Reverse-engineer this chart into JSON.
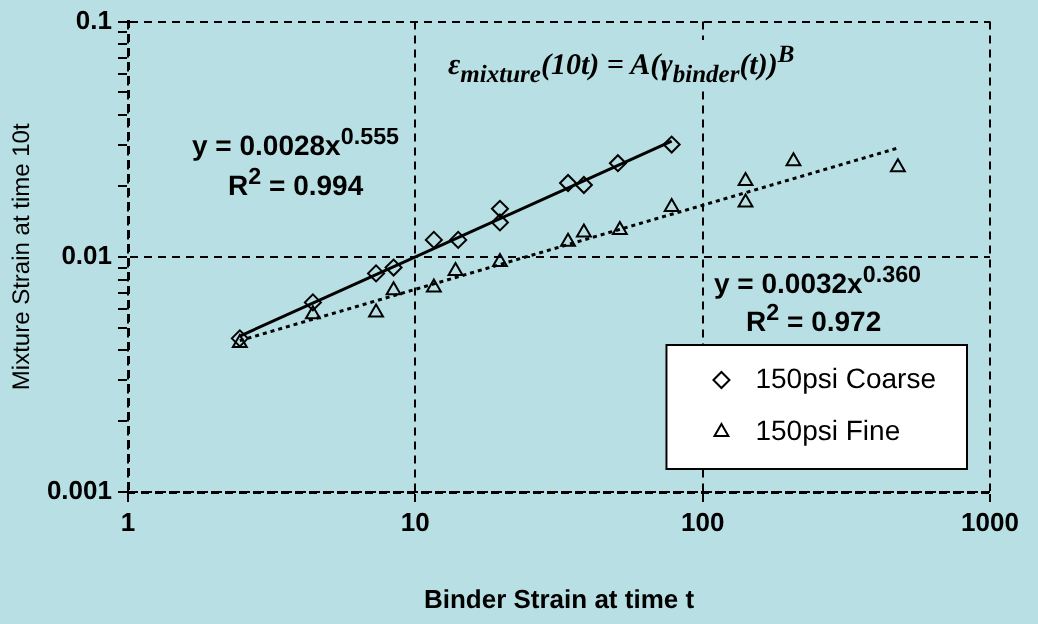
{
  "chart_data": {
    "type": "scatter",
    "xlabel": "Binder Strain at time t",
    "ylabel": "Mixture Strain at time 10t",
    "log": "xy",
    "xlim": [
      1,
      1000
    ],
    "ylim": [
      0.001,
      0.1
    ],
    "xticks": [
      1,
      10,
      100,
      1000
    ],
    "yticks": [
      0.001,
      {
        "value": 0.002,
        "label": null
      },
      {
        "value": 0.003,
        "label": null
      },
      {
        "value": 0.004,
        "label": null
      },
      {
        "value": 0.005,
        "label": null
      },
      {
        "value": 0.006,
        "label": null
      },
      {
        "value": 0.007,
        "label": null
      },
      {
        "value": 0.008,
        "label": null
      },
      {
        "value": 0.009,
        "label": null
      },
      0.01,
      {
        "value": 0.02,
        "label": null
      },
      {
        "value": 0.03,
        "label": null
      },
      {
        "value": 0.04,
        "label": null
      },
      {
        "value": 0.05,
        "label": null
      },
      {
        "value": 0.06,
        "label": null
      },
      {
        "value": 0.07,
        "label": null
      },
      {
        "value": 0.08,
        "label": null
      },
      {
        "value": 0.09,
        "label": null
      },
      0.1
    ],
    "grid": true,
    "legend": "bottom right",
    "series": [
      {
        "name": "150psi Coarse",
        "marker": "diamond",
        "color": "#000000",
        "x": [
          2.45,
          4.4,
          7.3,
          8.4,
          11.6,
          14.1,
          19.7,
          19.7,
          34,
          38.6,
          50.7,
          78
        ],
        "values": [
          0.0045,
          0.0064,
          0.0085,
          0.009,
          0.0118,
          0.0118,
          0.016,
          0.014,
          0.0206,
          0.0202,
          0.025,
          0.03
        ]
      },
      {
        "name": "150psi Fine",
        "marker": "triangle",
        "color": "#000000",
        "x": [
          2.45,
          4.4,
          7.3,
          8.4,
          11.6,
          13.8,
          19.7,
          34,
          38.6,
          51.5,
          78,
          141,
          141,
          207,
          478
        ],
        "values": [
          0.0043,
          0.0057,
          0.0058,
          0.0072,
          0.0074,
          0.0087,
          0.0095,
          0.0116,
          0.0127,
          0.013,
          0.0163,
          0.021,
          0.017,
          0.0255,
          0.024
        ]
      },
      {
        "type": "line",
        "marker": "none",
        "line_style": "solid",
        "color": "#000000",
        "x": [
          2.45,
          78
        ],
        "values": [
          0.0046,
          0.031
        ]
      },
      {
        "type": "line",
        "marker": "none",
        "line_style": "dashed",
        "color": "#000000",
        "x": [
          2.45,
          478
        ],
        "values": [
          0.0044,
          0.029
        ]
      }
    ],
    "annotations": [
      "ε$_{mixture}$(10t) = A(γ$_{binder}$(t))$^{B}$",
      "y = 0.0028x$^{0.555}$",
      "R$^{2}$ = 0.994",
      "y = 0.0032x$^{0.360}$",
      "R$^{2}$ = 0.972"
    ]
  }
}
